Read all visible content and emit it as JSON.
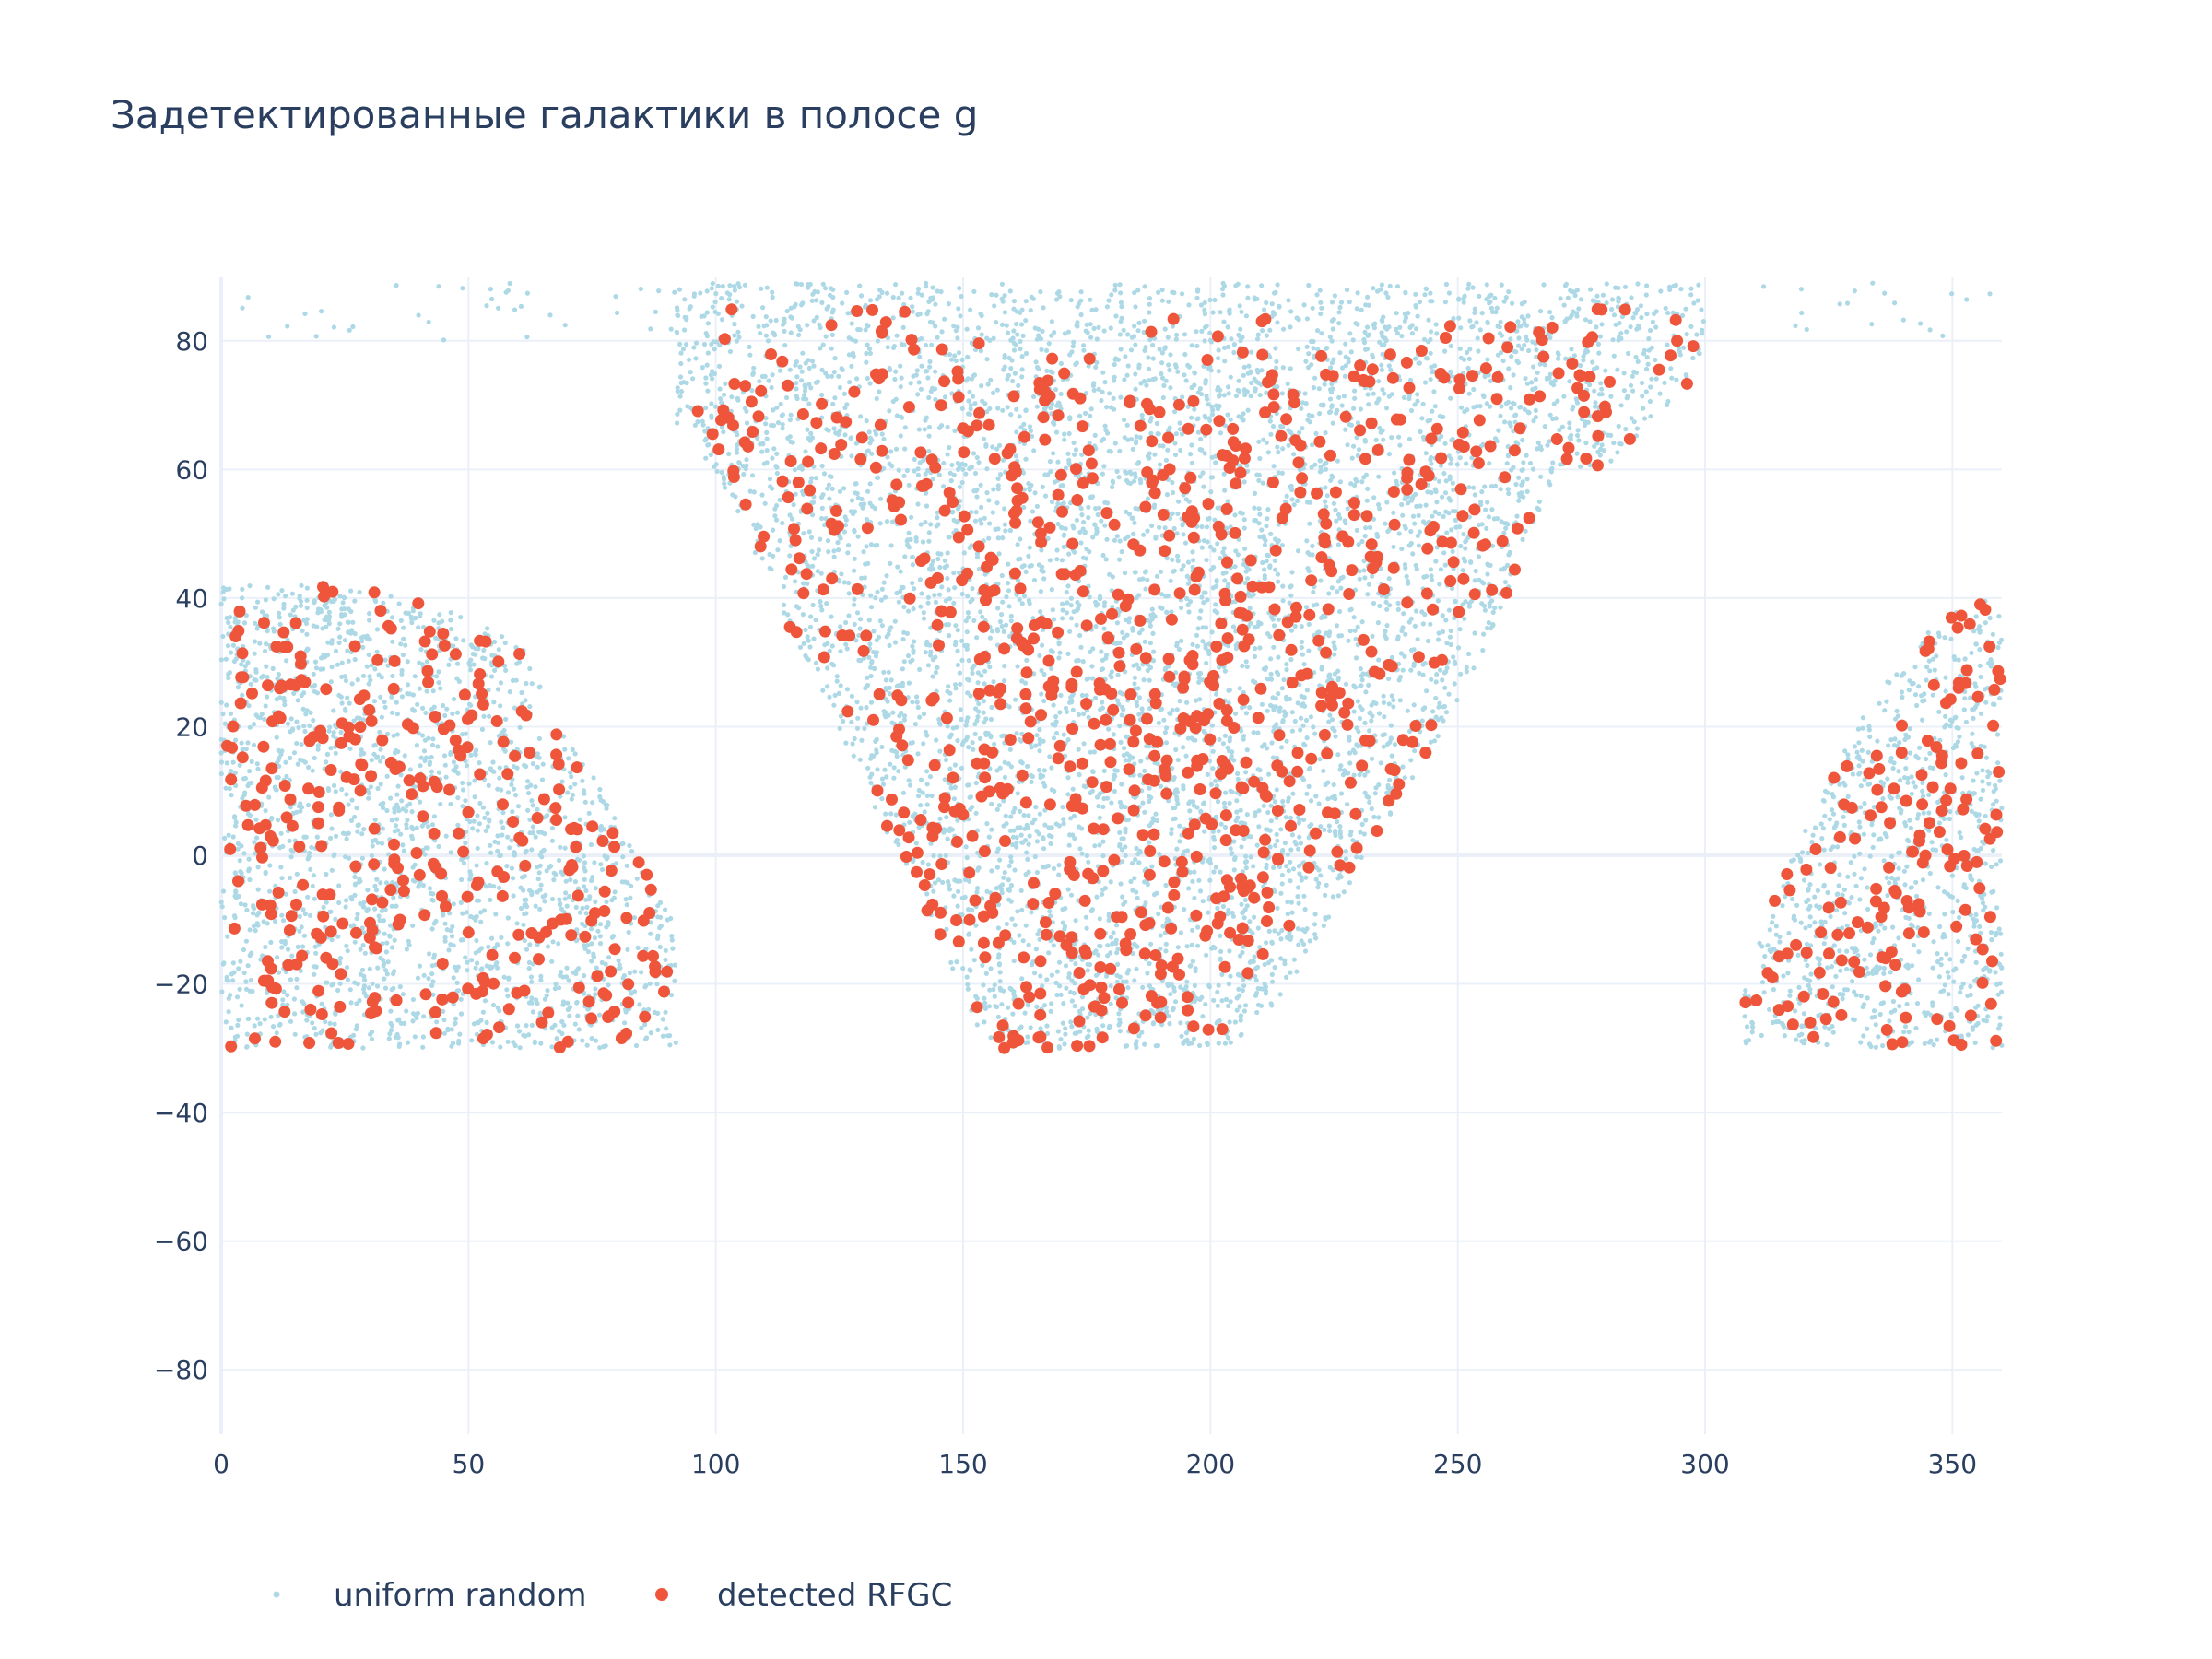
{
  "chart_data": {
    "type": "scatter",
    "title": "Задетектированные галактики в полосе g",
    "xlabel": "",
    "ylabel": "",
    "xlim": [
      0,
      360
    ],
    "ylim": [
      -90,
      90
    ],
    "x_ticks": [
      0,
      50,
      100,
      150,
      200,
      250,
      300,
      350
    ],
    "y_ticks": [
      -80,
      -60,
      -40,
      -20,
      0,
      20,
      40,
      60,
      80
    ],
    "y_tick_labels": [
      "−80",
      "−60",
      "−40",
      "−20",
      "0",
      "20",
      "40",
      "60",
      "80"
    ],
    "grid": true,
    "legend_position": "bottom-left",
    "footprint": {
      "dec_min": -30,
      "description": "survey footprint: left cap RA 0–92, central wedge RA 100–300, right cap RA 308–360"
    },
    "series": [
      {
        "name": "uniform random",
        "color": "#add8e6",
        "marker": "small-dot",
        "density": "approximately 9000 points uniformly filling footprint"
      },
      {
        "name": "detected RFGC",
        "color": "#ef553b",
        "marker": "dot",
        "density": "approximately 1300 points within footprint"
      }
    ]
  },
  "legend": {
    "items": [
      {
        "label": "uniform random",
        "color": "#add8e6"
      },
      {
        "label": "detected RFGC",
        "color": "#ef553b"
      }
    ]
  }
}
